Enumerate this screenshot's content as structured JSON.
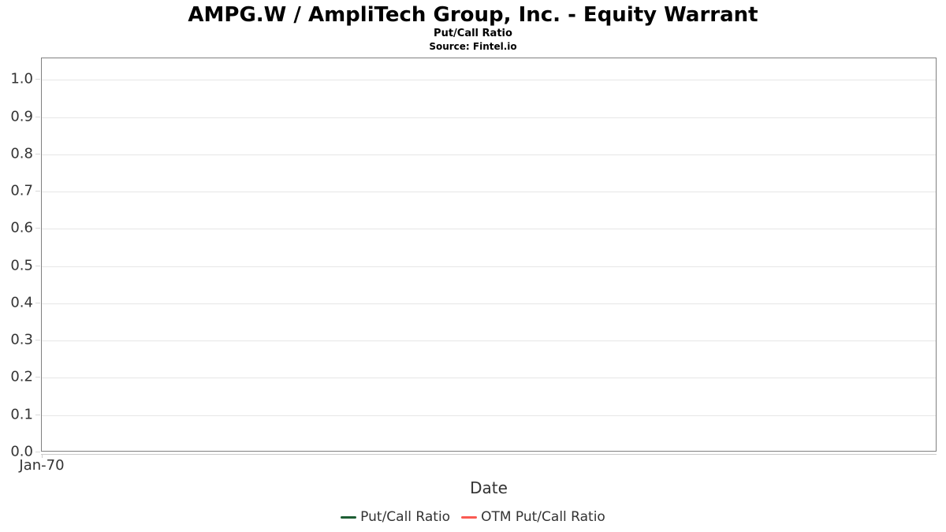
{
  "chart_data": {
    "type": "line",
    "title": "AMPG.W / AmpliTech Group, Inc. - Equity Warrant",
    "subtitle": "Put/Call Ratio",
    "source": "Source: Fintel.io",
    "xlabel": "Date",
    "ylabel": "",
    "xticks": [
      "Jan-70"
    ],
    "yticks": [
      0,
      0.1,
      0.2,
      0.3,
      0.4,
      0.5,
      0.6,
      0.7,
      0.8,
      0.9,
      1.0
    ],
    "ylim": [
      0,
      1.058
    ],
    "grid": true,
    "legend_position": "bottom",
    "series": [
      {
        "name": "Put/Call Ratio",
        "color": "#1d5e33",
        "x": [],
        "values": []
      },
      {
        "name": "OTM Put/Call Ratio",
        "color": "#fa5a52",
        "x": [],
        "values": []
      }
    ],
    "colors": {
      "grid": "#e6e6e6",
      "plot_border": "#808080",
      "axis_line": "#cccccc",
      "tick": "#d9d9d9",
      "tick_text": "#333333",
      "title_text": "#000000"
    }
  }
}
